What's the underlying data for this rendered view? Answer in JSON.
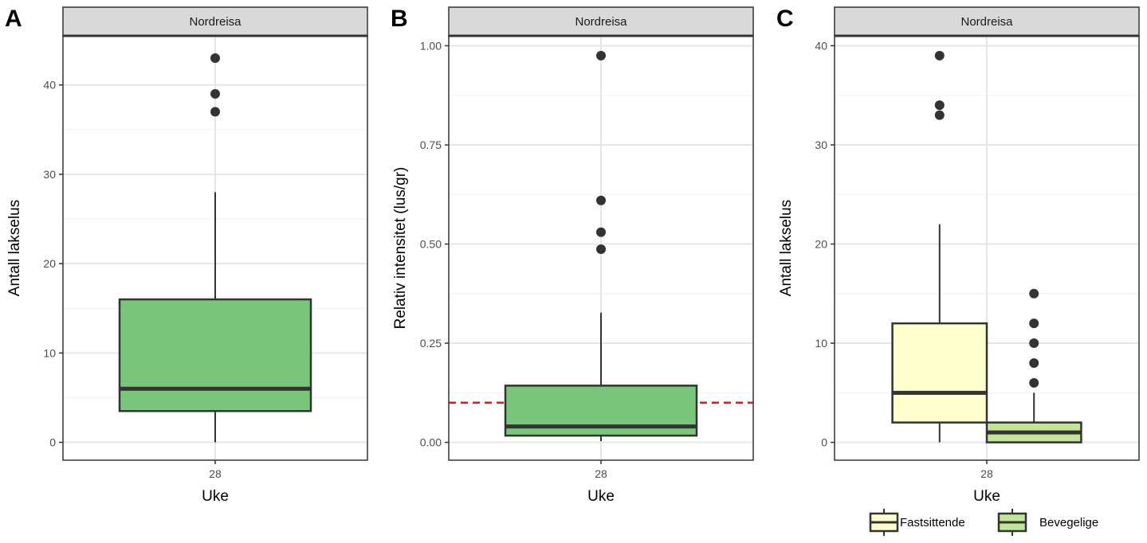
{
  "chart_data": [
    {
      "type": "box",
      "tag": "A",
      "facet": "Nordreisa",
      "xlabel": "Uke",
      "ylabel": "Antall lakselus",
      "categories": [
        "28"
      ],
      "ylim": [
        -2,
        45.5
      ],
      "yticks": [
        0,
        10,
        20,
        30,
        40
      ],
      "ytick_labels": [
        "0",
        "10",
        "20",
        "30",
        "40"
      ],
      "series": [
        {
          "name": "Antall lakselus",
          "color": "#78c679",
          "q1": 3.5,
          "median": 6,
          "q3": 16,
          "whisker_low": 0,
          "whisker_high": 28,
          "outliers": [
            37,
            39,
            43
          ]
        }
      ]
    },
    {
      "type": "box",
      "tag": "B",
      "facet": "Nordreisa",
      "xlabel": "Uke",
      "ylabel": "Relativ intensitet (lus/gr)",
      "categories": [
        "28"
      ],
      "ylim": [
        -0.045,
        1.025
      ],
      "yticks": [
        0,
        0.25,
        0.5,
        0.75,
        1.0
      ],
      "ytick_labels": [
        "0.00",
        "0.25",
        "0.50",
        "0.75",
        "1.00"
      ],
      "reference_line": {
        "value": 0.1,
        "color": "#e31a1c",
        "style": "dashed"
      },
      "series": [
        {
          "name": "Relativ intensitet",
          "color": "#78c679",
          "q1": 0.017,
          "median": 0.04,
          "q3": 0.143,
          "whisker_low": 0.003,
          "whisker_high": 0.327,
          "outliers": [
            0.487,
            0.53,
            0.61,
            0.975
          ]
        }
      ]
    },
    {
      "type": "box",
      "tag": "C",
      "facet": "Nordreisa",
      "xlabel": "Uke",
      "ylabel": "Antall lakselus",
      "categories": [
        "28"
      ],
      "ylim": [
        -1.8,
        41
      ],
      "yticks": [
        0,
        10,
        20,
        30,
        40
      ],
      "ytick_labels": [
        "0",
        "10",
        "20",
        "30",
        "40"
      ],
      "legend_position": "bottom",
      "series": [
        {
          "name": "Fastsittende",
          "color": "#ffffcc",
          "q1": 2,
          "median": 5,
          "q3": 12,
          "whisker_low": 0,
          "whisker_high": 22,
          "outliers": [
            33,
            34,
            39
          ]
        },
        {
          "name": "Bevegelige",
          "color": "#c2e699",
          "q1": 0,
          "median": 1,
          "q3": 2,
          "whisker_low": 0,
          "whisker_high": 5,
          "outliers": [
            6,
            8,
            10,
            12,
            15
          ]
        }
      ]
    }
  ]
}
